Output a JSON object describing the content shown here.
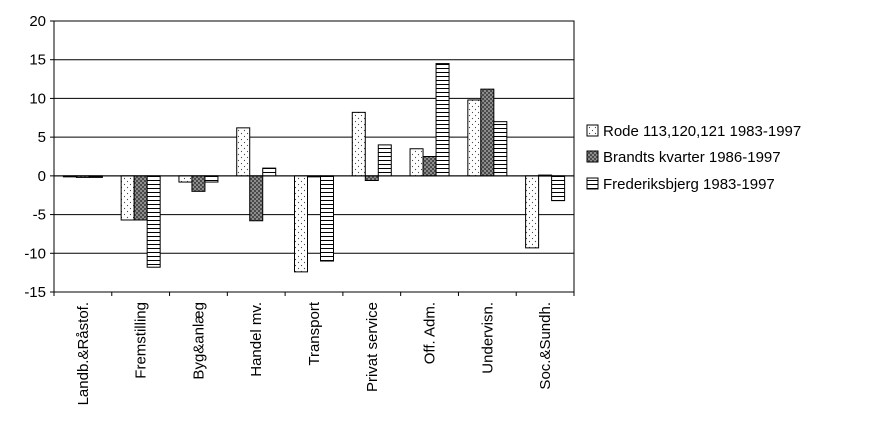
{
  "chart_data": {
    "type": "bar",
    "title": "",
    "xlabel": "",
    "ylabel": "",
    "ylim": [
      -15,
      20
    ],
    "yticks": [
      -15,
      -10,
      -5,
      0,
      5,
      10,
      15,
      20
    ],
    "ytick_labels": [
      "-15",
      "-10",
      "-5",
      "0",
      "5",
      "10",
      "15",
      "20"
    ],
    "grid": true,
    "legend_position": "right",
    "categories": [
      "Landb.&Råstof.",
      "Fremstilling",
      "Byg&anlæg",
      "Handel mv.",
      "Transport",
      "Privat service",
      "Off. Adm.",
      "Undervisn.",
      "Soc.&Sundh."
    ],
    "series": [
      {
        "name": "Rode 113,120,121 1983-1997",
        "pattern": "dots",
        "values": [
          -0.1,
          -5.7,
          -0.8,
          6.2,
          -12.4,
          8.2,
          3.5,
          9.8,
          -9.3
        ]
      },
      {
        "name": "Brandts kvarter 1986-1997",
        "pattern": "crosshatch",
        "values": [
          -0.2,
          -5.7,
          -2.0,
          -5.8,
          0.0,
          -0.6,
          2.5,
          11.2,
          0.1
        ]
      },
      {
        "name": "Frederiksbjerg 1983-1997",
        "pattern": "hlines",
        "values": [
          -0.2,
          -11.8,
          -0.8,
          1.0,
          -11.0,
          4.0,
          14.5,
          7.0,
          -3.2
        ]
      }
    ]
  }
}
